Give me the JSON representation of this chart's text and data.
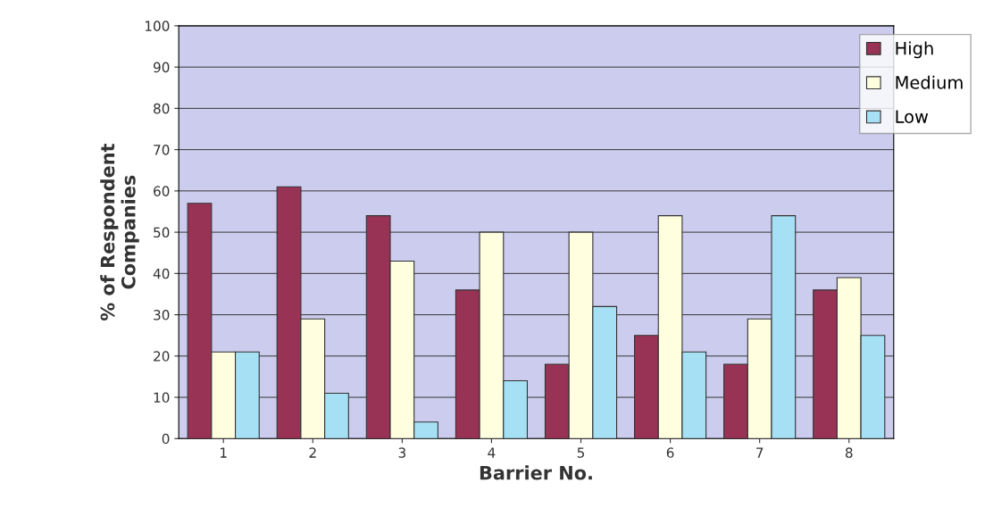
{
  "chart_data": {
    "type": "bar",
    "xlabel": "Barrier No.",
    "ylabel": "% of Respondent\nCompanies",
    "categories": [
      "1",
      "2",
      "3",
      "4",
      "5",
      "6",
      "7",
      "8"
    ],
    "series": [
      {
        "name": "High",
        "color": "#993355",
        "values": [
          57,
          61,
          54,
          36,
          18,
          25,
          18,
          36
        ]
      },
      {
        "name": "Medium",
        "color": "#ffffe0",
        "values": [
          21,
          29,
          43,
          50,
          50,
          54,
          29,
          39
        ]
      },
      {
        "name": "Low",
        "color": "#a6e0f5",
        "values": [
          21,
          11,
          4,
          14,
          32,
          21,
          54,
          25
        ]
      }
    ],
    "ylim": [
      0,
      100
    ],
    "yticks": [
      0,
      10,
      20,
      30,
      40,
      50,
      60,
      70,
      80,
      90,
      100
    ],
    "grid": "y",
    "legend": "top right"
  }
}
